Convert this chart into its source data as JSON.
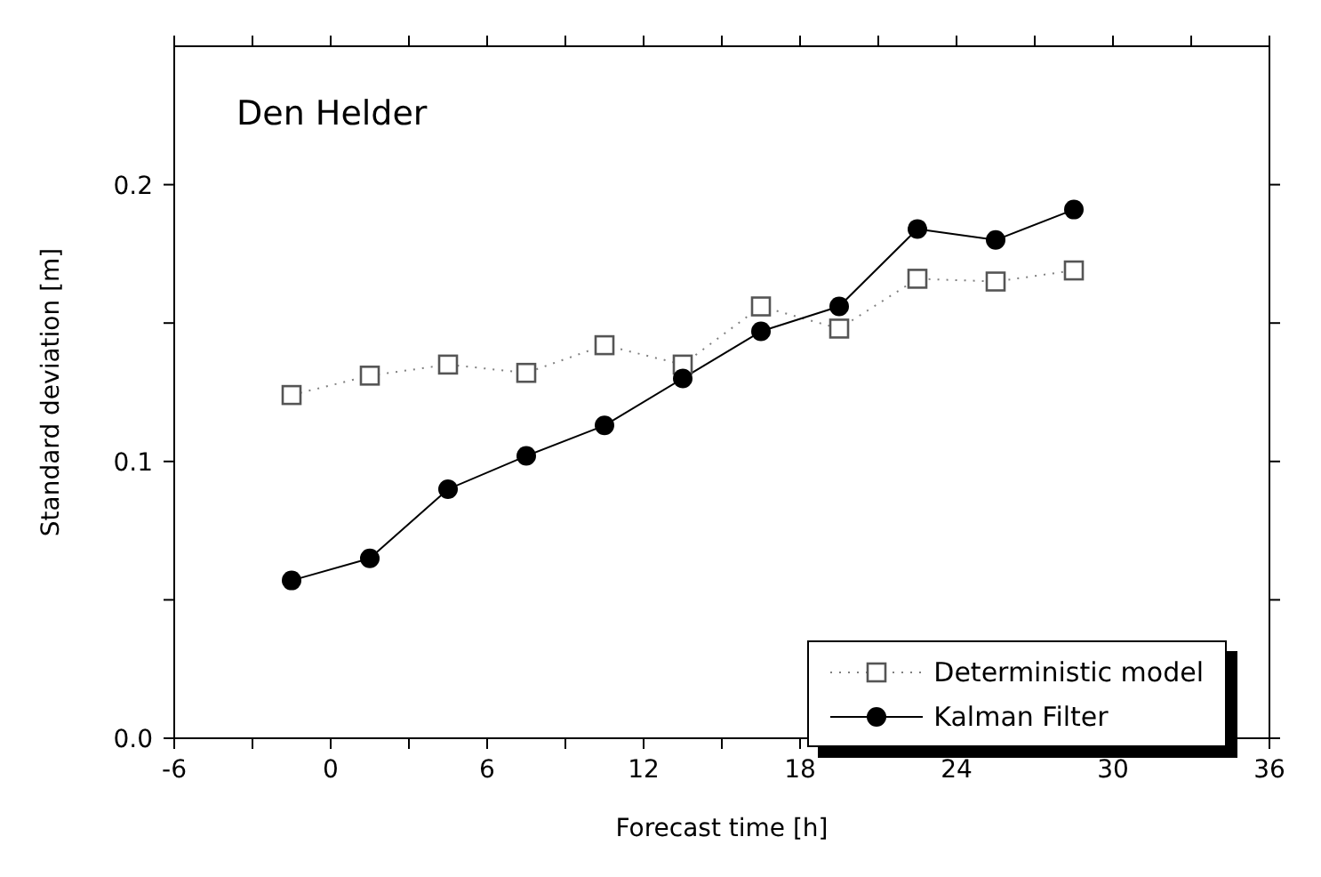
{
  "chart_data": {
    "type": "line",
    "title": "Den Helder",
    "xlabel": "Forecast time [h]",
    "ylabel": "Standard deviation [m]",
    "x": [
      -1.5,
      1.5,
      4.5,
      7.5,
      10.5,
      13.5,
      16.5,
      19.5,
      22.5,
      25.5,
      28.5
    ],
    "series": [
      {
        "name": "Deterministic model",
        "color": "#808080",
        "marker": "square",
        "line_style": "dotted",
        "values": [
          0.124,
          0.131,
          0.135,
          0.132,
          0.142,
          0.135,
          0.156,
          0.148,
          0.166,
          0.165,
          0.169
        ]
      },
      {
        "name": "Kalman Filter",
        "color": "#000000",
        "marker": "circle",
        "line_style": "solid",
        "values": [
          0.057,
          0.065,
          0.09,
          0.102,
          0.113,
          0.13,
          0.147,
          0.156,
          0.184,
          0.18,
          0.191
        ]
      }
    ],
    "xlim": [
      -6,
      36
    ],
    "xticks": [
      -6,
      {
        "value": -3,
        "label": null
      },
      0,
      {
        "value": 3,
        "label": null
      },
      6,
      {
        "value": 9,
        "label": null
      },
      12,
      {
        "value": 15,
        "label": null
      },
      18,
      {
        "value": 21,
        "label": null
      },
      24,
      {
        "value": 27,
        "label": null
      },
      30,
      {
        "value": 33,
        "label": null
      },
      36
    ],
    "ylim": [
      0,
      0.25
    ],
    "yticks": [
      {
        "value": 0,
        "label": "0.0"
      },
      {
        "value": 0.05,
        "label": null
      },
      0.1,
      {
        "value": 0.15,
        "label": null
      },
      0.2
    ],
    "grid": false,
    "legend": "bottom right"
  }
}
